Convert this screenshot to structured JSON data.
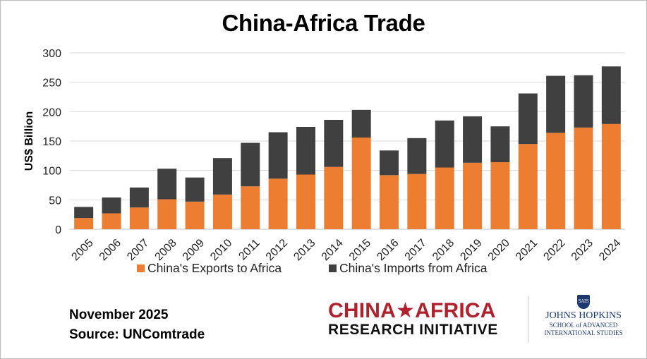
{
  "chart_data": {
    "type": "bar",
    "stacked": true,
    "title": "China-Africa Trade",
    "ylabel": "US$ Billion",
    "xlabel": "",
    "ylim": [
      0,
      300
    ],
    "yticks": [
      0,
      50,
      100,
      150,
      200,
      250,
      300
    ],
    "grid": "horizontal",
    "legend_position": "bottom",
    "categories": [
      "2005",
      "2006",
      "2007",
      "2008",
      "2009",
      "2010",
      "2011",
      "2012",
      "2013",
      "2014",
      "2015",
      "2016",
      "2017",
      "2018",
      "2019",
      "2020",
      "2021",
      "2022",
      "2023",
      "2024"
    ],
    "series": [
      {
        "name": "China's Exports to Africa",
        "color": "#ed7d31",
        "values": [
          19,
          27,
          37,
          51,
          47,
          59,
          73,
          86,
          93,
          106,
          156,
          92,
          94,
          105,
          113,
          114,
          145,
          164,
          173,
          179
        ]
      },
      {
        "name": "China's Imports from Africa",
        "color": "#404040",
        "values": [
          19,
          27,
          34,
          52,
          41,
          62,
          74,
          79,
          81,
          80,
          47,
          42,
          61,
          80,
          79,
          61,
          86,
          97,
          89,
          98
        ]
      }
    ]
  },
  "footer": {
    "date": "November 2025",
    "source": "Source: UNComtrade"
  },
  "logos": {
    "cari_line1": "CHINA★AFRICA",
    "cari_line2": "RESEARCH INITIATIVE",
    "jhu_shield": "SAIS",
    "jhu_line1": "JOHNS HOPKINS",
    "jhu_line2": "SCHOOL of ADVANCED",
    "jhu_line3": "INTERNATIONAL STUDIES"
  }
}
